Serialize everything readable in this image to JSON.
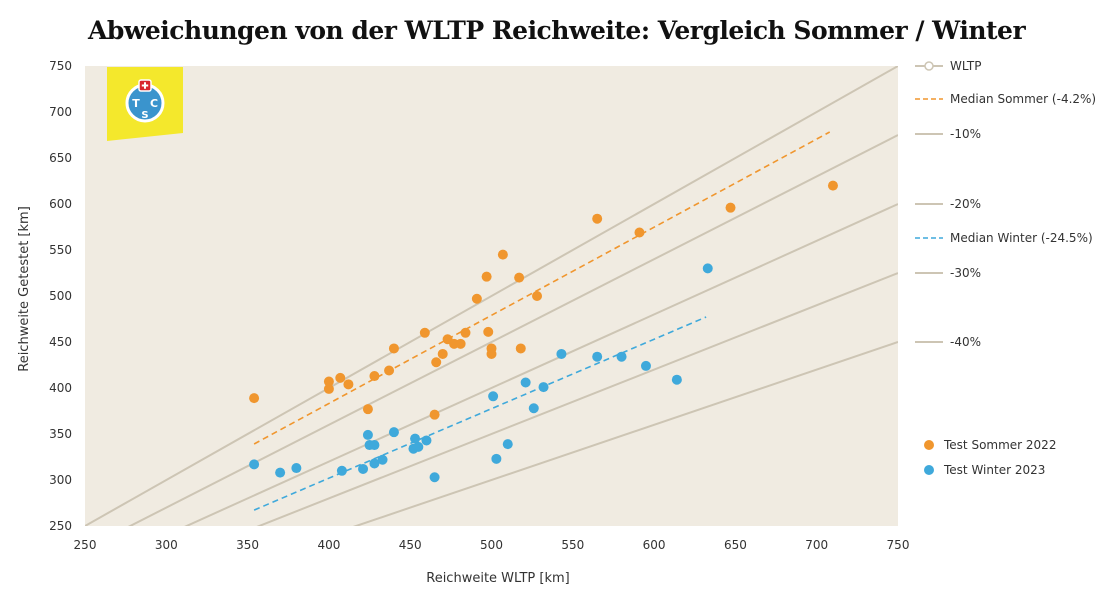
{
  "chart_data": {
    "type": "scatter",
    "title": "Abweichungen von der WLTP Reichweite: Vergleich Sommer / Winter",
    "xlabel": "Reichweite WLTP [km]",
    "ylabel": "Reichweite Getestet [km]",
    "xlim": [
      250,
      750
    ],
    "ylim": [
      250,
      750
    ],
    "xticks": [
      250,
      300,
      350,
      400,
      450,
      500,
      550,
      600,
      650,
      700,
      750
    ],
    "yticks": [
      250,
      300,
      350,
      400,
      450,
      500,
      550,
      600,
      650,
      700,
      750
    ],
    "grid": false,
    "legend_position": "right",
    "reference_lines": [
      {
        "name": "WLTP",
        "factor": 1.0,
        "color": "#cdc5b4"
      },
      {
        "name": "-10%",
        "factor": 0.9,
        "color": "#cdc5b4"
      },
      {
        "name": "-20%",
        "factor": 0.8,
        "color": "#cdc5b4"
      },
      {
        "name": "-30%",
        "factor": 0.7,
        "color": "#cdc5b4"
      },
      {
        "name": "-40%",
        "factor": 0.6,
        "color": "#cdc5b4"
      }
    ],
    "median_lines": [
      {
        "name": "Median Sommer (-4.2%)",
        "factor": 0.958,
        "x": [
          354,
          708
        ],
        "color": "#f0962e"
      },
      {
        "name": "Median Winter (-24.5%)",
        "factor": 0.755,
        "x": [
          354,
          632
        ],
        "color": "#3fa9db"
      }
    ],
    "series": [
      {
        "name": "Test Sommer 2022",
        "color": "#f0962e",
        "points": [
          [
            354,
            389
          ],
          [
            400,
            407
          ],
          [
            400,
            399
          ],
          [
            407,
            411
          ],
          [
            412,
            404
          ],
          [
            424,
            377
          ],
          [
            428,
            413
          ],
          [
            437,
            419
          ],
          [
            440,
            443
          ],
          [
            459,
            460
          ],
          [
            465,
            371
          ],
          [
            466,
            428
          ],
          [
            470,
            437
          ],
          [
            473,
            453
          ],
          [
            477,
            448
          ],
          [
            481,
            448
          ],
          [
            484,
            460
          ],
          [
            491,
            497
          ],
          [
            497,
            521
          ],
          [
            498,
            461
          ],
          [
            500,
            443
          ],
          [
            500,
            437
          ],
          [
            507,
            545
          ],
          [
            517,
            520
          ],
          [
            518,
            443
          ],
          [
            528,
            500
          ],
          [
            565,
            584
          ],
          [
            591,
            569
          ],
          [
            647,
            596
          ],
          [
            710,
            620
          ]
        ]
      },
      {
        "name": "Test Winter 2023",
        "color": "#3fa9db",
        "points": [
          [
            354,
            317
          ],
          [
            370,
            308
          ],
          [
            380,
            313
          ],
          [
            408,
            310
          ],
          [
            421,
            312
          ],
          [
            424,
            349
          ],
          [
            425,
            338
          ],
          [
            428,
            338
          ],
          [
            428,
            318
          ],
          [
            433,
            322
          ],
          [
            440,
            352
          ],
          [
            452,
            334
          ],
          [
            453,
            345
          ],
          [
            455,
            336
          ],
          [
            460,
            343
          ],
          [
            465,
            303
          ],
          [
            501,
            391
          ],
          [
            503,
            323
          ],
          [
            510,
            339
          ],
          [
            521,
            406
          ],
          [
            526,
            378
          ],
          [
            532,
            401
          ],
          [
            543,
            437
          ],
          [
            565,
            434
          ],
          [
            580,
            434
          ],
          [
            595,
            424
          ],
          [
            614,
            409
          ],
          [
            633,
            530
          ]
        ]
      }
    ],
    "logo_text": {
      "t": "T",
      "c": "C",
      "s": "S"
    }
  }
}
